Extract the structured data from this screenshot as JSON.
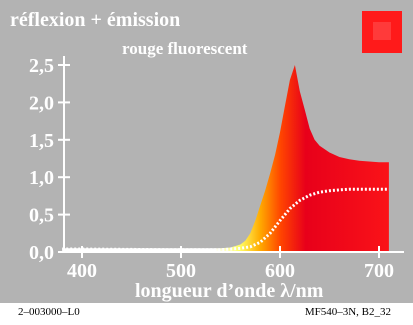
{
  "title": "réflexion + émission",
  "subtitle": "rouge fluorescent",
  "footer": {
    "left": "2–003000–L0",
    "right": "MF540–3N, B2_32"
  },
  "colors": {
    "panel_background": "#b3b3b3",
    "swatch_outer": "#ff1a1a",
    "swatch_inner": "#ff3a3a",
    "reflection_curve": "#ffffff",
    "fill_peak": "#e8001a",
    "fill_tail": "#ff1818"
  },
  "chart_data": {
    "type": "area",
    "title": "réflexion + émission",
    "subtitle": "rouge fluorescent",
    "xlabel": "longueur d’onde λ/nm",
    "ylabel": "",
    "xlim": [
      380,
      720
    ],
    "ylim": [
      0,
      2.5
    ],
    "x_ticks": [
      400,
      500,
      600,
      700
    ],
    "y_ticks": [
      0.0,
      0.5,
      1.0,
      1.5,
      2.0,
      2.5
    ],
    "x_tick_labels": [
      "400",
      "500",
      "600",
      "700"
    ],
    "y_tick_labels": [
      "0,0",
      "0,5",
      "1,0",
      "1,5",
      "2,0",
      "2,5"
    ],
    "grid": false,
    "series": [
      {
        "style": "filled-area",
        "x": [
          380,
          400,
          500,
          540,
          550,
          560,
          565,
          570,
          575,
          580,
          585,
          590,
          595,
          600,
          605,
          610,
          615,
          620,
          625,
          630,
          635,
          640,
          650,
          660,
          670,
          680,
          690,
          700,
          710
        ],
        "y": [
          0.05,
          0.05,
          0.05,
          0.05,
          0.06,
          0.1,
          0.15,
          0.25,
          0.42,
          0.62,
          0.82,
          1.05,
          1.3,
          1.6,
          1.95,
          2.3,
          2.5,
          2.15,
          1.9,
          1.65,
          1.5,
          1.42,
          1.33,
          1.27,
          1.24,
          1.22,
          1.21,
          1.2,
          1.2
        ]
      },
      {
        "style": "dotted-line",
        "x": [
          380,
          400,
          500,
          540,
          550,
          560,
          570,
          580,
          590,
          600,
          610,
          620,
          630,
          640,
          650,
          660,
          670,
          680,
          690,
          700,
          710
        ],
        "y": [
          0.04,
          0.04,
          0.03,
          0.03,
          0.04,
          0.05,
          0.07,
          0.13,
          0.25,
          0.42,
          0.58,
          0.69,
          0.76,
          0.8,
          0.82,
          0.83,
          0.84,
          0.84,
          0.84,
          0.84,
          0.84
        ]
      }
    ]
  }
}
